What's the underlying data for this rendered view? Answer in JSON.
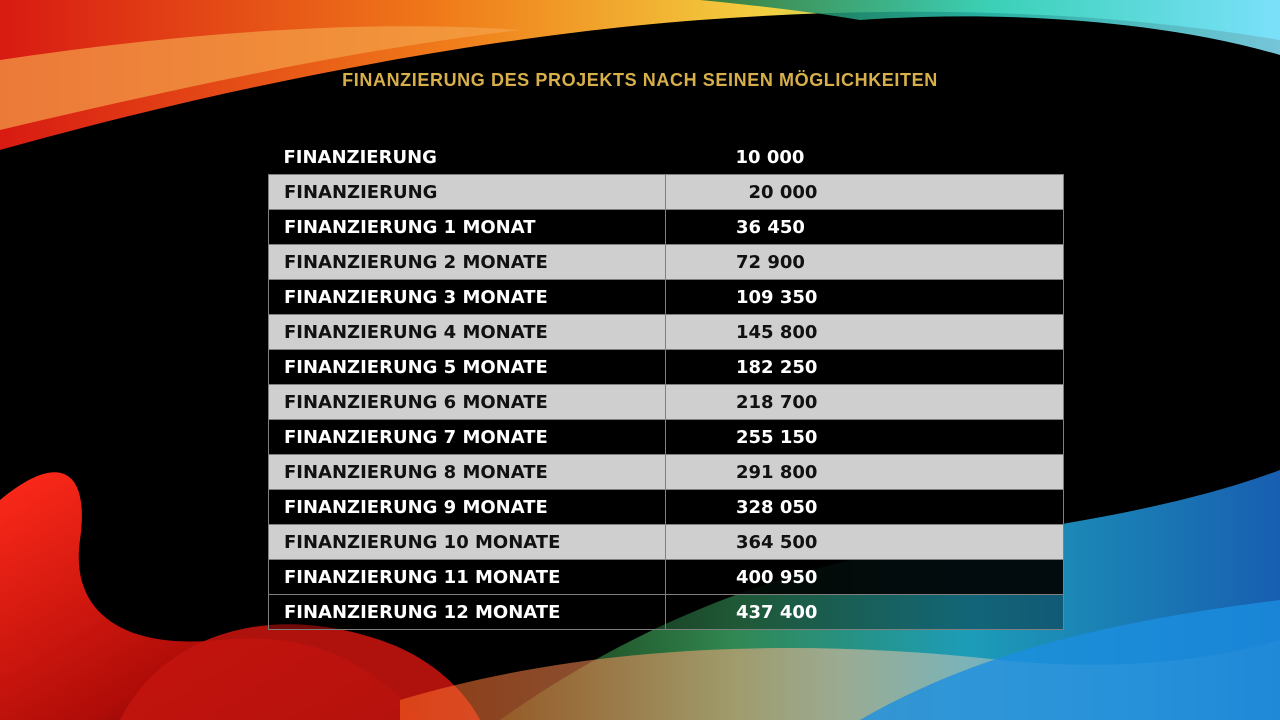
{
  "title": "FINANZIERUNG DES PROJEKTS NACH SEINEN MÖGLICHKEITEN",
  "rows": [
    {
      "label": "FINANZIERUNG",
      "value": "10 000"
    },
    {
      "label": "FINANZIERUNG",
      "value": "  20 000"
    },
    {
      "label": "FINANZIERUNG 1 MONAT",
      "value": "36 450"
    },
    {
      "label": "FINANZIERUNG 2 MONATE",
      "value": "72 900"
    },
    {
      "label": "FINANZIERUNG 3 MONATE",
      "value": "109 350"
    },
    {
      "label": "FINANZIERUNG 4 MONATE",
      "value": "145 800"
    },
    {
      "label": "FINANZIERUNG 5 MONATE",
      "value": "182 250"
    },
    {
      "label": "FINANZIERUNG 6 MONATE",
      "value": "218 700"
    },
    {
      "label": "FINANZIERUNG 7 MONATE",
      "value": "255 150"
    },
    {
      "label": "FINANZIERUNG 8 MONATE",
      "value": "291 800"
    },
    {
      "label": "FINANZIERUNG 9 MONATE",
      "value": "328 050"
    },
    {
      "label": "FINANZIERUNG 10 MONATE",
      "value": "364 500"
    },
    {
      "label": "FINANZIERUNG 11 MONATE",
      "value": "400 950"
    },
    {
      "label": "FINANZIERUNG 12 MONATE",
      "value": "437 400"
    }
  ],
  "colors": {
    "title": "#d8b04a",
    "light_row": "#cfcfcf",
    "dark_row": "#000000",
    "ribbon_red": "#e0201a",
    "ribbon_orange": "#f08a1c",
    "ribbon_yellow": "#f5d23a",
    "ribbon_cyan": "#26c6e8",
    "ribbon_blue": "#1f6fd1"
  }
}
